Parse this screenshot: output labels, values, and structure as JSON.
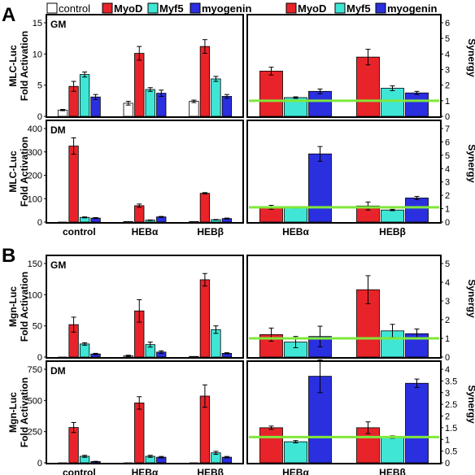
{
  "figure": {
    "panel_labels": [
      "A",
      "B"
    ],
    "legend_left": [
      {
        "name": "control",
        "color": "#ffffff"
      },
      {
        "name": "MyoD",
        "color": "#e8242a"
      },
      {
        "name": "Myf5",
        "color": "#3fe6d6"
      },
      {
        "name": "myogenin",
        "color": "#2a2fe0"
      }
    ],
    "legend_right": [
      {
        "name": "MyoD",
        "color": "#e8242a"
      },
      {
        "name": "Myf5",
        "color": "#3fe6d6"
      },
      {
        "name": "myogenin",
        "color": "#2a2fe0"
      }
    ],
    "colors": {
      "control": "#ffffff",
      "MyoD": "#e8242a",
      "Myf5": "#3fe6d6",
      "myogenin": "#2a2fe0",
      "synergy_line": "#7fe83a"
    }
  },
  "chart_data": [
    {
      "type": "bar",
      "panel": "A",
      "inset_label": "GM",
      "ylabel": "MLC-Luc\nFold Activation",
      "ylim": [
        0,
        15
      ],
      "yticks": [
        0,
        5,
        10,
        15
      ],
      "categories": [
        "control",
        "HEBα",
        "HEBβ"
      ],
      "series": [
        {
          "name": "control",
          "values": [
            1.0,
            2.1,
            2.4
          ],
          "errors": [
            0.1,
            0.3,
            0.2
          ]
        },
        {
          "name": "MyoD",
          "values": [
            4.8,
            10.1,
            11.2
          ],
          "errors": [
            0.8,
            1.1,
            1.1
          ]
        },
        {
          "name": "Myf5",
          "values": [
            6.7,
            4.3,
            6.0
          ],
          "errors": [
            0.4,
            0.3,
            0.4
          ]
        },
        {
          "name": "myogenin",
          "values": [
            3.1,
            3.7,
            3.2
          ],
          "errors": [
            0.4,
            0.5,
            0.3
          ]
        }
      ]
    },
    {
      "type": "bar",
      "panel": "A",
      "inset_label": "",
      "ylabel": "Synergy",
      "ylim": [
        0,
        6
      ],
      "yticks": [
        0,
        1,
        2,
        3,
        4,
        5,
        6
      ],
      "categories": [
        "HEBα",
        "HEBβ"
      ],
      "reference_line": 1.0,
      "series": [
        {
          "name": "MyoD",
          "values": [
            2.9,
            3.8
          ],
          "errors": [
            0.25,
            0.5
          ]
        },
        {
          "name": "Myf5",
          "values": [
            1.2,
            1.8
          ],
          "errors": [
            0.05,
            0.15
          ]
        },
        {
          "name": "myogenin",
          "values": [
            1.6,
            1.5
          ],
          "errors": [
            0.15,
            0.1
          ]
        }
      ]
    },
    {
      "type": "bar",
      "panel": "A",
      "inset_label": "DM",
      "ylabel": "MLC-Luc\nFold Activation",
      "ylim": [
        0,
        400
      ],
      "yticks": [
        0,
        100,
        200,
        300,
        400
      ],
      "categories": [
        "control",
        "HEBα",
        "HEBβ"
      ],
      "series": [
        {
          "name": "control",
          "values": [
            0,
            2,
            2
          ],
          "errors": [
            0,
            0,
            0
          ]
        },
        {
          "name": "MyoD",
          "values": [
            325,
            70,
            123
          ],
          "errors": [
            35,
            7,
            3
          ]
        },
        {
          "name": "Myf5",
          "values": [
            20,
            8,
            10
          ],
          "errors": [
            2,
            1,
            1
          ]
        },
        {
          "name": "myogenin",
          "values": [
            17,
            22,
            15
          ],
          "errors": [
            2,
            2,
            2
          ]
        }
      ]
    },
    {
      "type": "bar",
      "panel": "A",
      "inset_label": "",
      "ylabel": "Synergy",
      "ylim": [
        0,
        7
      ],
      "yticks": [
        0,
        1,
        2,
        3,
        4,
        5,
        6,
        7
      ],
      "categories": [
        "HEBα",
        "HEBβ"
      ],
      "reference_line": 1.1,
      "series": [
        {
          "name": "MyoD",
          "values": [
            1.1,
            1.2
          ],
          "errors": [
            0.15,
            0.3
          ]
        },
        {
          "name": "Myf5",
          "values": [
            1.1,
            0.9
          ],
          "errors": [
            0.05,
            0.05
          ]
        },
        {
          "name": "myogenin",
          "values": [
            5.1,
            1.8
          ],
          "errors": [
            0.55,
            0.12
          ]
        }
      ]
    },
    {
      "type": "bar",
      "panel": "B",
      "inset_label": "GM",
      "ylabel": "Mgn-Luc\nFold Activation",
      "ylim": [
        0,
        150
      ],
      "yticks": [
        0,
        50,
        100,
        150
      ],
      "categories": [
        "control",
        "HEBα",
        "HEBβ"
      ],
      "series": [
        {
          "name": "control",
          "values": [
            0,
            2,
            1
          ],
          "errors": [
            0,
            1,
            0
          ]
        },
        {
          "name": "MyoD",
          "values": [
            52,
            74,
            124
          ],
          "errors": [
            12,
            18,
            10
          ]
        },
        {
          "name": "Myf5",
          "values": [
            21,
            20,
            44
          ],
          "errors": [
            2,
            4,
            6
          ]
        },
        {
          "name": "myogenin",
          "values": [
            5,
            8,
            6
          ],
          "errors": [
            1,
            2,
            1
          ]
        }
      ]
    },
    {
      "type": "bar",
      "panel": "B",
      "inset_label": "",
      "ylabel": "Synergy",
      "ylim": [
        0,
        5
      ],
      "yticks": [
        0,
        1,
        2,
        3,
        4,
        5
      ],
      "categories": [
        "HEBα",
        "HEBβ"
      ],
      "reference_line": 1.0,
      "series": [
        {
          "name": "MyoD",
          "values": [
            1.2,
            3.6
          ],
          "errors": [
            0.35,
            0.75
          ]
        },
        {
          "name": "Myf5",
          "values": [
            0.8,
            1.4
          ],
          "errors": [
            0.3,
            0.35
          ]
        },
        {
          "name": "myogenin",
          "values": [
            1.1,
            1.25
          ],
          "errors": [
            0.55,
            0.25
          ]
        }
      ]
    },
    {
      "type": "bar",
      "panel": "B",
      "inset_label": "DM",
      "ylabel": "Mgn-Luc\nFold Activation",
      "ylim": [
        0,
        750
      ],
      "yticks": [
        0,
        250,
        500,
        750
      ],
      "categories": [
        "control",
        "HEBα",
        "HEBβ"
      ],
      "series": [
        {
          "name": "control",
          "values": [
            0,
            0,
            0
          ],
          "errors": [
            0,
            0,
            0
          ]
        },
        {
          "name": "MyoD",
          "values": [
            283,
            480,
            535
          ],
          "errors": [
            40,
            50,
            90
          ]
        },
        {
          "name": "Myf5",
          "values": [
            52,
            52,
            80
          ],
          "errors": [
            8,
            8,
            12
          ]
        },
        {
          "name": "myogenin",
          "values": [
            10,
            45,
            45
          ],
          "errors": [
            2,
            6,
            6
          ]
        }
      ]
    },
    {
      "type": "bar",
      "panel": "B",
      "inset_label": "",
      "ylabel": "Synergy",
      "ylim": [
        0,
        4
      ],
      "yticks": [
        0,
        0.5,
        1,
        1.5,
        2,
        2.5,
        3,
        3.5,
        4
      ],
      "categories": [
        "HEBα",
        "HEBβ"
      ],
      "reference_line": 1.1,
      "series": [
        {
          "name": "MyoD",
          "values": [
            1.5,
            1.5
          ],
          "errors": [
            0.07,
            0.25
          ]
        },
        {
          "name": "Myf5",
          "values": [
            0.9,
            1.1
          ],
          "errors": [
            0.05,
            0.05
          ]
        },
        {
          "name": "myogenin",
          "values": [
            3.7,
            3.4
          ],
          "errors": [
            0.7,
            0.18
          ]
        }
      ]
    }
  ]
}
